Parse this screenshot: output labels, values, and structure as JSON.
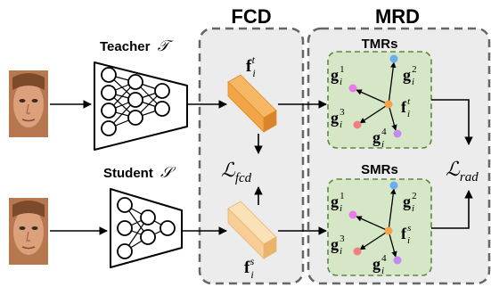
{
  "panels": {
    "fcd_title": "FCD",
    "mrd_title": "MRD"
  },
  "teacher": {
    "label": "Teacher",
    "symbol": "𝒯"
  },
  "student": {
    "label": "Student",
    "symbol": "𝒮"
  },
  "features": {
    "teacher": {
      "base": "f",
      "sub": "i",
      "sup": "t"
    },
    "student": {
      "base": "f",
      "sub": "i",
      "sup": "s"
    }
  },
  "losses": {
    "fcd": {
      "base": "ℒ",
      "sub": "fcd"
    },
    "rad": {
      "base": "ℒ",
      "sub": "rad"
    }
  },
  "tmrs": {
    "title": "TMRs",
    "nodes": [
      {
        "base": "g",
        "sub": "i",
        "sup": "1",
        "color": "#e77ce6"
      },
      {
        "base": "g",
        "sub": "i",
        "sup": "2",
        "color": "#6aaef0"
      },
      {
        "base": "g",
        "sub": "i",
        "sup": "3",
        "color": "#f08080"
      },
      {
        "base": "g",
        "sub": "i",
        "sup": "4",
        "color": "#c58af0"
      }
    ],
    "center": {
      "base": "f",
      "sub": "i",
      "sup": "t",
      "color": "#f5a14a"
    }
  },
  "smrs": {
    "title": "SMRs",
    "nodes": [
      {
        "base": "g",
        "sub": "i",
        "sup": "1",
        "color": "#e77ce6"
      },
      {
        "base": "g",
        "sub": "i",
        "sup": "2",
        "color": "#6aaef0"
      },
      {
        "base": "g",
        "sub": "i",
        "sup": "3",
        "color": "#f08080"
      },
      {
        "base": "g",
        "sub": "i",
        "sup": "4",
        "color": "#c58af0"
      }
    ],
    "center": {
      "base": "f",
      "sub": "i",
      "sup": "s",
      "color": "#f5a14a"
    }
  },
  "colors": {
    "panel_fill": "#ececec",
    "panel_stroke": "#666666",
    "mr_fill": "#d6e7c8",
    "mr_stroke": "#5a8a3c",
    "feature_teacher": "#f2a546",
    "feature_student": "#f7cf96"
  }
}
